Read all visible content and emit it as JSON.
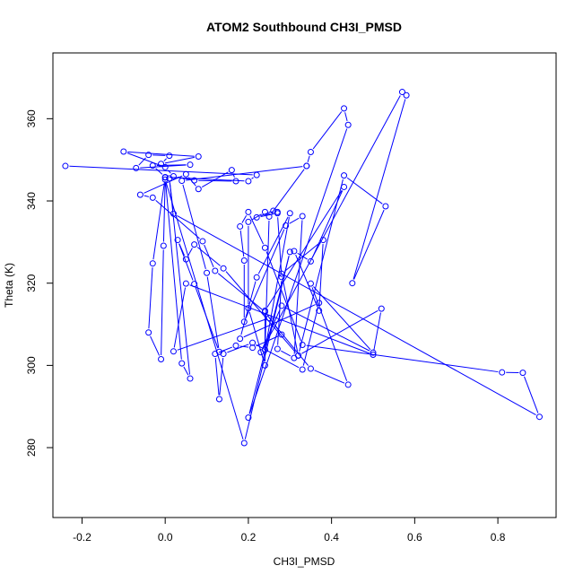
{
  "chart_data": {
    "type": "line",
    "title": "ATOM2 Southbound CH3I_PMSD",
    "xlabel": "CH3I_PMSD",
    "ylabel": "Theta (K)",
    "xlim": [
      -0.27,
      0.94
    ],
    "ylim": [
      263,
      376
    ],
    "xticks": [
      "-0.2",
      "0.0",
      "0.2",
      "0.4",
      "0.6",
      "0.8"
    ],
    "xtick_values": [
      -0.2,
      0.0,
      0.2,
      0.4,
      0.6,
      0.8
    ],
    "yticks": [
      "280",
      "300",
      "320",
      "340",
      "360"
    ],
    "ytick_values": [
      280,
      300,
      320,
      340,
      360
    ],
    "grid": false,
    "legend": "none",
    "colors": {
      "series": "#0000ff",
      "axes": "#000000"
    },
    "series": [
      {
        "points": [
          [
            -0.24,
            348.5
          ],
          [
            0.22,
            346.3
          ],
          [
            0.2,
            344.8
          ],
          [
            0.0,
            345.8
          ],
          [
            -0.03,
            348.6
          ],
          [
            0.06,
            348.8
          ],
          [
            -0.07,
            348.0
          ],
          [
            -0.04,
            351.2
          ],
          [
            0.01,
            351.0
          ],
          [
            -0.01,
            349.0
          ],
          [
            0.08,
            350.8
          ],
          [
            -0.1,
            352.0
          ],
          [
            0.0,
            348.2
          ],
          [
            0.02,
            346.0
          ],
          [
            0.07,
            345.0
          ],
          [
            0.17,
            344.8
          ],
          [
            0.16,
            347.5
          ],
          [
            0.08,
            342.9
          ],
          [
            0.05,
            346.5
          ],
          [
            -0.06,
            341.5
          ],
          [
            -0.03,
            340.8
          ],
          [
            0.09,
            330.2
          ],
          [
            0.12,
            323.0
          ],
          [
            0.24,
            313.0
          ],
          [
            0.28,
            307.5
          ],
          [
            0.21,
            304.3
          ],
          [
            0.17,
            304.8
          ],
          [
            0.12,
            302.8
          ],
          [
            0.13,
            291.8
          ],
          [
            0.14,
            302.8
          ],
          [
            0.21,
            305.5
          ],
          [
            0.33,
            299.0
          ],
          [
            0.37,
            315.2
          ],
          [
            0.18,
            306.5
          ],
          [
            0.22,
            321.4
          ],
          [
            0.3,
            337.0
          ],
          [
            0.24,
            303.8
          ],
          [
            0.25,
            336.2
          ],
          [
            0.34,
            348.5
          ],
          [
            0.04,
            344.9
          ],
          [
            0.1,
            322.5
          ],
          [
            0.13,
            303.3
          ],
          [
            0.07,
            319.8
          ],
          [
            0.03,
            330.5
          ],
          [
            0.05,
            325.8
          ],
          [
            0.07,
            329.4
          ],
          [
            0.14,
            323.6
          ],
          [
            0.32,
            302.4
          ],
          [
            0.52,
            313.8
          ],
          [
            0.5,
            302.6
          ],
          [
            0.05,
            319.9
          ],
          [
            0.02,
            303.4
          ],
          [
            0.25,
            311.5
          ],
          [
            0.35,
            299.2
          ],
          [
            0.44,
            295.3
          ],
          [
            0.35,
            319.9
          ],
          [
            0.5,
            303.1
          ],
          [
            0.28,
            314.5
          ],
          [
            0.23,
            303.2
          ],
          [
            0.57,
            366.5
          ],
          [
            0.58,
            365.7
          ],
          [
            0.45,
            320.0
          ],
          [
            0.53,
            338.7
          ],
          [
            0.43,
            346.2
          ],
          [
            0.32,
            302.4
          ],
          [
            0.28,
            322.3
          ],
          [
            0.38,
            330.5
          ],
          [
            0.37,
            313.3
          ],
          [
            0.31,
            327.8
          ],
          [
            0.35,
            325.3
          ],
          [
            0.43,
            343.4
          ],
          [
            0.24,
            313.3
          ],
          [
            0.24,
            300.0
          ],
          [
            0.2,
            313.9
          ],
          [
            0.2,
            334.9
          ],
          [
            0.24,
            337.3
          ],
          [
            0.27,
            337.3
          ],
          [
            0.26,
            337.6
          ],
          [
            0.22,
            336.0
          ],
          [
            0.27,
            337.0
          ],
          [
            0.28,
            321.5
          ],
          [
            0.27,
            304.0
          ],
          [
            0.31,
            301.8
          ],
          [
            0.33,
            336.3
          ],
          [
            0.29,
            334.0
          ],
          [
            0.19,
            310.6
          ],
          [
            0.19,
            325.5
          ],
          [
            0.18,
            333.8
          ],
          [
            0.2,
            337.3
          ],
          [
            0.24,
            328.6
          ],
          [
            0.33,
            305.0
          ],
          [
            0.81,
            298.3
          ],
          [
            0.86,
            298.2
          ],
          [
            0.9,
            287.5
          ],
          [
            0.02,
            336.9
          ],
          [
            0.01,
            345.5
          ],
          [
            0.06,
            296.8
          ],
          [
            0.04,
            300.5
          ],
          [
            0.0,
            345.7
          ],
          [
            -0.03,
            324.8
          ],
          [
            -0.04,
            308.0
          ],
          [
            -0.01,
            301.5
          ],
          [
            -0.004,
            329.1
          ],
          [
            0.0,
            345.2
          ],
          [
            0.19,
            281.1
          ],
          [
            0.3,
            327.6
          ],
          [
            0.2,
            287.3
          ],
          [
            0.44,
            358.5
          ],
          [
            0.43,
            362.5
          ],
          [
            0.35,
            351.9
          ],
          [
            0.34,
            348.5
          ]
        ]
      }
    ]
  }
}
